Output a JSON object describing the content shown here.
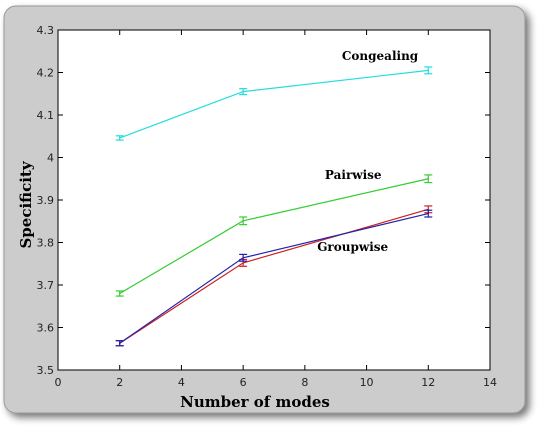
{
  "chart_data": {
    "type": "line",
    "title": "",
    "xlabel": "Number of modes",
    "ylabel": "Specificity",
    "xlim": [
      0,
      14
    ],
    "ylim": [
      3.5,
      4.3
    ],
    "xticks": [
      0,
      2,
      4,
      6,
      8,
      10,
      12,
      14
    ],
    "yticks": [
      3.5,
      3.6,
      3.7,
      3.8,
      3.9,
      4,
      4.1,
      4.2,
      4.3
    ],
    "xtick_labels": [
      "0",
      "2",
      "4",
      "6",
      "8",
      "10",
      "12",
      "14"
    ],
    "ytick_labels": [
      "3.5",
      "3.6",
      "3.7",
      "3.8",
      "3.9",
      "4",
      "4.1",
      "4.2",
      "4.3"
    ],
    "grid": false,
    "x": [
      2,
      6,
      12
    ],
    "series": [
      {
        "name": "Congealing",
        "color": "#22dddd",
        "values": [
          4.046,
          4.155,
          4.205
        ],
        "error": [
          0.005,
          0.007,
          0.008
        ]
      },
      {
        "name": "Pairwise",
        "color": "#33cc33",
        "values": [
          3.68,
          3.851,
          3.95
        ],
        "error": [
          0.006,
          0.009,
          0.009
        ]
      },
      {
        "name": "",
        "color": "#cc2222",
        "values": [
          3.563,
          3.752,
          3.878
        ],
        "error": [
          0.006,
          0.008,
          0.008
        ]
      },
      {
        "name": "Groupwise",
        "color": "#2222aa",
        "values": [
          3.563,
          3.764,
          3.868
        ],
        "error": [
          0.006,
          0.008,
          0.008
        ]
      }
    ],
    "annotations": [
      "Congealing",
      "Pairwise",
      "Groupwise"
    ]
  }
}
